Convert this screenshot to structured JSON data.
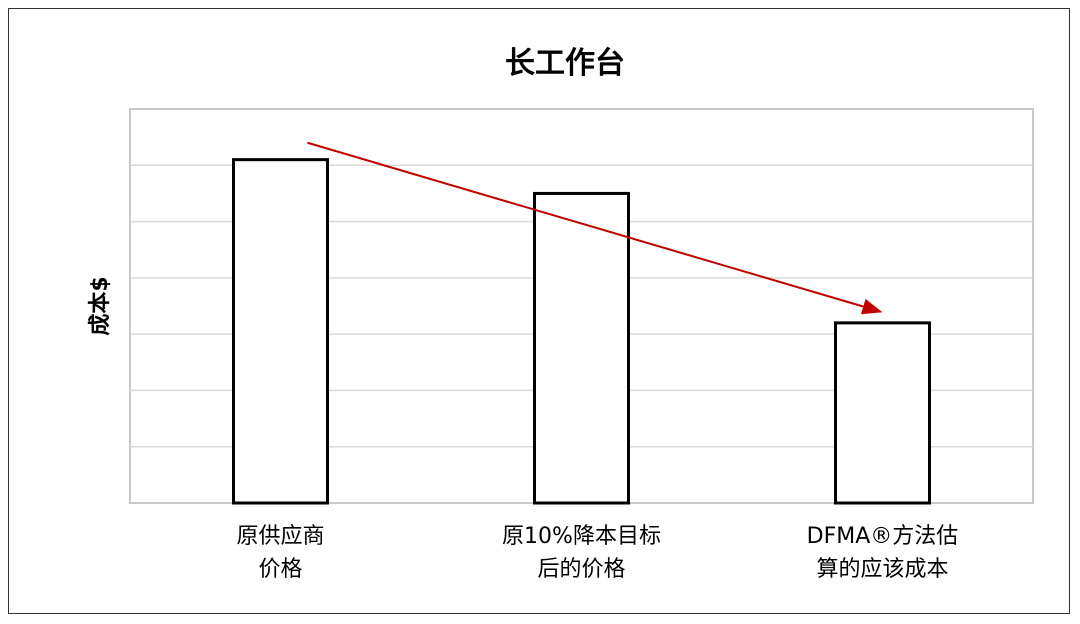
{
  "chart_data": {
    "type": "bar",
    "title": "长工作台",
    "xlabel": "",
    "ylabel": "成本$",
    "categories": [
      [
        "原供应商",
        "价格"
      ],
      [
        "原10%降本目标",
        "后的价格"
      ],
      [
        "DFMA®方法估",
        "算的应该成本"
      ]
    ],
    "values": [
      6.1,
      5.5,
      3.2
    ],
    "ylim": [
      0,
      7
    ],
    "grid": true,
    "y_tick_labels_shown": false,
    "bar_fill": "#ffffff",
    "bar_edge": "#000000",
    "annotation": {
      "type": "arrow",
      "from_category": 0,
      "to_category": 2,
      "color": "#c00000",
      "from_value": 6.4,
      "to_value": 3.4
    }
  }
}
